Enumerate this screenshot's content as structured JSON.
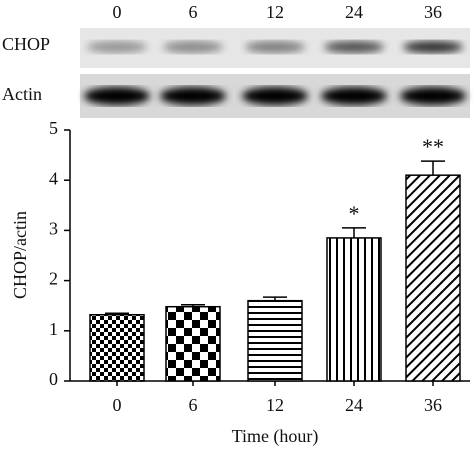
{
  "blot": {
    "lanes": [
      "0",
      "6",
      "12",
      "24",
      "36"
    ],
    "rows": [
      "CHOP",
      "Actin"
    ]
  },
  "chart_data": {
    "type": "bar",
    "categories": [
      "0",
      "6",
      "12",
      "24",
      "36"
    ],
    "values": [
      1.32,
      1.48,
      1.6,
      2.85,
      4.1
    ],
    "errors": [
      0.03,
      0.04,
      0.07,
      0.2,
      0.28
    ],
    "annotations": [
      null,
      null,
      null,
      "*",
      "**"
    ],
    "ylim": [
      0,
      5
    ],
    "yticks": [
      0,
      1,
      2,
      3,
      4,
      5
    ],
    "xlabel": "Time (hour)",
    "ylabel": "CHOP/actin"
  }
}
